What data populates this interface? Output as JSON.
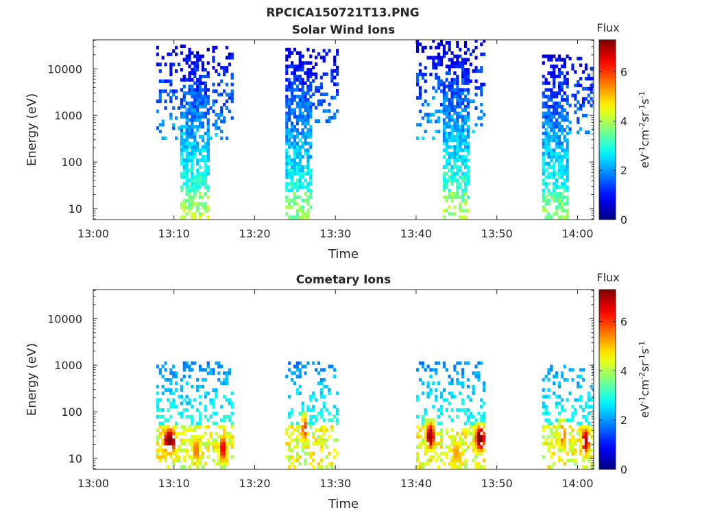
{
  "figure_title": "RPCICA150721T13.PNG",
  "chart_data": [
    {
      "type": "heatmap",
      "title": "Solar Wind Ions",
      "xlabel": "Time",
      "ylabel": "Energy (eV)",
      "x_ticks": [
        "13:00",
        "13:10",
        "13:20",
        "13:30",
        "13:40",
        "13:50",
        "14:00"
      ],
      "x_tick_minutes": [
        0,
        10,
        20,
        30,
        40,
        50,
        60
      ],
      "xlim_minutes": [
        0,
        62
      ],
      "y_scale": "log",
      "ylim": [
        5.8,
        42000
      ],
      "y_ticks": [
        10,
        100,
        1000,
        10000
      ],
      "y_tick_labels": [
        "10",
        "100",
        "1000",
        "10000"
      ],
      "colorbar": {
        "label": "Flux",
        "unit": "eV-1cm-2sr-1s-1",
        "range": [
          0,
          7.3
        ],
        "ticks": [
          0,
          2,
          4,
          6
        ],
        "colormap": "jet"
      },
      "bursts": [
        {
          "t_start": 7.8,
          "t_end": 17.3,
          "core_start": 10.7,
          "core_end": 14.2,
          "e_min": 6,
          "e_max": 30000,
          "outer_e_min": 300,
          "flux_low": 3.6,
          "flux_high": 0.6
        },
        {
          "t_start": 23.8,
          "t_end": 30.3,
          "core_start": 23.8,
          "core_end": 27.0,
          "e_min": 6,
          "e_max": 26000,
          "outer_e_min": 500,
          "flux_low": 3.4,
          "flux_high": 0.7
        },
        {
          "t_start": 40.0,
          "t_end": 48.5,
          "core_start": 43.0,
          "core_end": 46.3,
          "e_min": 6,
          "e_max": 38000,
          "outer_e_min": 300,
          "flux_low": 3.6,
          "flux_high": 0.6
        },
        {
          "t_start": 55.6,
          "t_end": 62.0,
          "core_start": 55.6,
          "core_end": 58.6,
          "e_min": 6,
          "e_max": 18000,
          "outer_e_min": 400,
          "flux_low": 3.4,
          "flux_high": 0.7
        }
      ]
    },
    {
      "type": "heatmap",
      "title": "Cometary Ions",
      "xlabel": "Time",
      "ylabel": "Energy (eV)",
      "x_ticks": [
        "13:00",
        "13:10",
        "13:20",
        "13:30",
        "13:40",
        "13:50",
        "14:00"
      ],
      "x_tick_minutes": [
        0,
        10,
        20,
        30,
        40,
        50,
        60
      ],
      "xlim_minutes": [
        0,
        62
      ],
      "y_scale": "log",
      "ylim": [
        5.8,
        42000
      ],
      "y_ticks": [
        10,
        100,
        1000,
        10000
      ],
      "y_tick_labels": [
        "10",
        "100",
        "1000",
        "10000"
      ],
      "colorbar": {
        "label": "Flux",
        "unit": "eV-1cm-2sr-1s-1",
        "range": [
          0,
          7.3
        ],
        "ticks": [
          0,
          2,
          4,
          6
        ],
        "colormap": "jet"
      },
      "segments": [
        {
          "t_start": 7.8,
          "t_end": 17.3,
          "e_max": 1200
        },
        {
          "t_start": 23.8,
          "t_end": 30.3,
          "e_max": 1100
        },
        {
          "t_start": 40.0,
          "t_end": 48.5,
          "e_max": 1200
        },
        {
          "t_start": 55.6,
          "t_end": 62.0,
          "e_max": 1000
        }
      ],
      "hotspots": [
        {
          "t": 9.3,
          "e_center": 22,
          "flux": 7.2,
          "width": 1.0
        },
        {
          "t": 12.6,
          "e_center": 14,
          "flux": 5.5,
          "width": 0.6
        },
        {
          "t": 15.9,
          "e_center": 15,
          "flux": 6.4,
          "width": 0.6
        },
        {
          "t": 26.0,
          "e_center": 40,
          "flux": 6.0,
          "width": 0.4
        },
        {
          "t": 41.6,
          "e_center": 28,
          "flux": 7.0,
          "width": 0.7
        },
        {
          "t": 44.8,
          "e_center": 12,
          "flux": 5.2,
          "width": 0.6
        },
        {
          "t": 47.8,
          "e_center": 25,
          "flux": 7.3,
          "width": 0.8
        },
        {
          "t": 58.0,
          "e_center": 30,
          "flux": 5.6,
          "width": 0.5
        },
        {
          "t": 60.8,
          "e_center": 22,
          "flux": 6.8,
          "width": 0.7
        }
      ]
    }
  ]
}
